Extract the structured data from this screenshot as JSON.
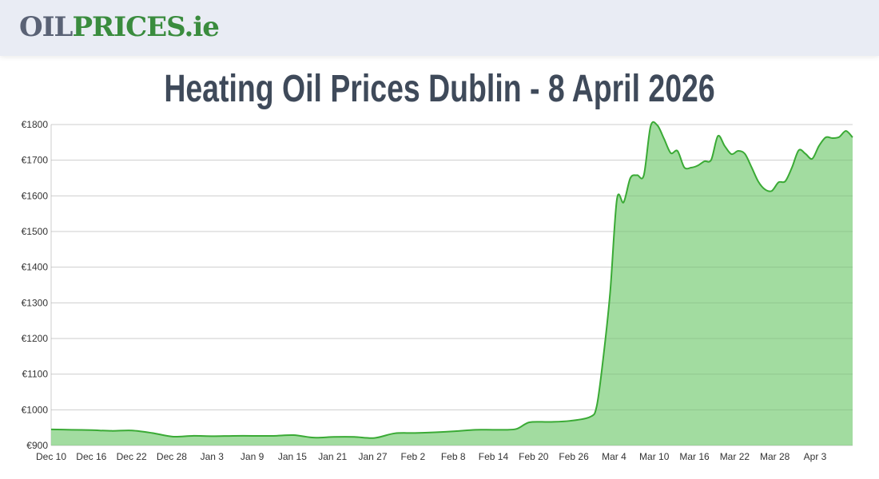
{
  "header": {
    "logo_part1": "OIL",
    "logo_part2": "PRICES.ie"
  },
  "chart_data": {
    "type": "area",
    "title": "Heating Oil Prices Dublin - 8 April 2026",
    "xlabel": "",
    "ylabel": "",
    "ylim": [
      900,
      1800
    ],
    "y_ticks": [
      "€900",
      "€1000",
      "€1100",
      "€1200",
      "€1300",
      "€1400",
      "€1500",
      "€1600",
      "€1700",
      "€1800"
    ],
    "x_ticks": [
      "Dec 10",
      "Dec 16",
      "Dec 22",
      "Dec 28",
      "Jan 3",
      "Jan 9",
      "Jan 15",
      "Jan 21",
      "Jan 27",
      "Feb 2",
      "Feb 8",
      "Feb 14",
      "Feb 20",
      "Feb 26",
      "Mar 4",
      "Mar 10",
      "Mar 16",
      "Mar 22",
      "Mar 28",
      "Apr 3"
    ],
    "grid": true,
    "colors": {
      "line": "#3aaa35",
      "fill": "#92d68f"
    },
    "x": [
      "2025-12-10",
      "2025-12-13",
      "2025-12-16",
      "2025-12-19",
      "2025-12-22",
      "2025-12-25",
      "2025-12-28",
      "2025-12-31",
      "2026-01-03",
      "2026-01-06",
      "2026-01-09",
      "2026-01-12",
      "2026-01-15",
      "2026-01-18",
      "2026-01-21",
      "2026-01-24",
      "2026-01-27",
      "2026-01-30",
      "2026-02-02",
      "2026-02-05",
      "2026-02-08",
      "2026-02-11",
      "2026-02-14",
      "2026-02-17",
      "2026-02-19",
      "2026-02-22",
      "2026-02-25",
      "2026-02-28",
      "2026-03-01",
      "2026-03-02",
      "2026-03-03",
      "2026-03-04",
      "2026-03-05",
      "2026-03-06",
      "2026-03-07",
      "2026-03-08",
      "2026-03-09",
      "2026-03-10",
      "2026-03-11",
      "2026-03-12",
      "2026-03-13",
      "2026-03-14",
      "2026-03-15",
      "2026-03-16",
      "2026-03-17",
      "2026-03-18",
      "2026-03-19",
      "2026-03-20",
      "2026-03-21",
      "2026-03-22",
      "2026-03-23",
      "2026-03-24",
      "2026-03-25",
      "2026-03-26",
      "2026-03-27",
      "2026-03-28",
      "2026-03-29",
      "2026-03-30",
      "2026-03-31",
      "2026-04-01",
      "2026-04-02",
      "2026-04-03",
      "2026-04-04",
      "2026-04-05",
      "2026-04-06",
      "2026-04-07",
      "2026-04-08"
    ],
    "values": [
      945,
      944,
      943,
      941,
      942,
      935,
      925,
      927,
      926,
      927,
      927,
      927,
      929,
      922,
      924,
      924,
      921,
      934,
      935,
      937,
      940,
      944,
      944,
      946,
      965,
      966,
      969,
      980,
      1010,
      1150,
      1330,
      1590,
      1582,
      1650,
      1658,
      1658,
      1795,
      1798,
      1760,
      1720,
      1726,
      1680,
      1679,
      1685,
      1697,
      1701,
      1768,
      1740,
      1717,
      1726,
      1718,
      1680,
      1640,
      1618,
      1614,
      1638,
      1641,
      1680,
      1728,
      1718,
      1704,
      1740,
      1764,
      1762,
      1765,
      1782,
      1764
    ]
  }
}
